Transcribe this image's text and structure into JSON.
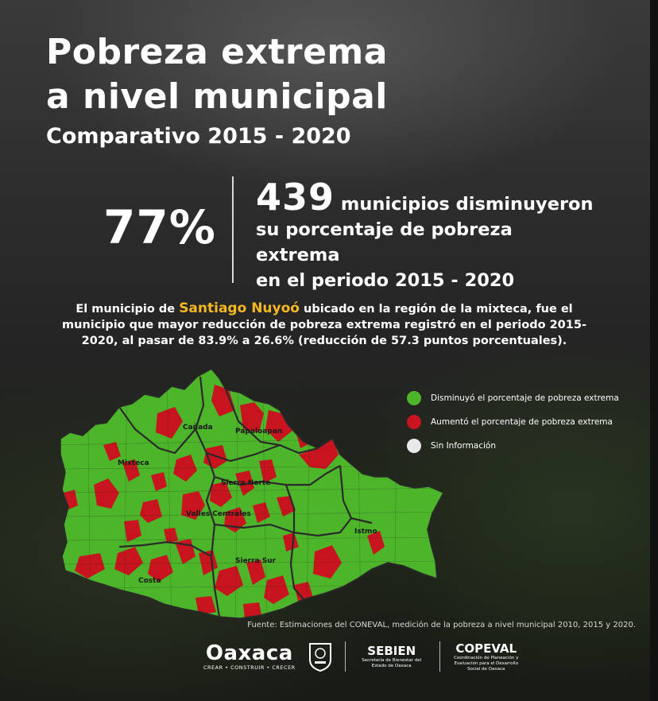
{
  "title_line1": "Pobreza extrema",
  "title_line2": "a nivel municipal",
  "subtitle": "Comparativo 2015 - 2020",
  "stat": {
    "percent": "77%",
    "count": "439",
    "text_line1": "municipios disminuyeron",
    "text_line2": "su porcentaje de pobreza extrema",
    "text_line3": "en el periodo 2015 - 2020"
  },
  "paragraph": {
    "before": "El municipio de ",
    "highlight": "Santiago Nuyoó",
    "after": " ubicado  en la región de la mixteca, fue el municipio que mayor reducción de pobreza extrema registró en el periodo 2015-2020, al pasar de 83.9% a 26.6% (reducción de 57.3 puntos porcentuales)."
  },
  "legend": [
    {
      "label": "Disminuyó el porcentaje de pobreza extrema",
      "color": "#4cb52a"
    },
    {
      "label": "Aumentó el porcentaje de pobreza extrema",
      "color": "#c8141e"
    },
    {
      "label": "Sin Información",
      "color": "#e8e8e8"
    }
  ],
  "regions": {
    "canada": "Cañada",
    "papaloapan": "Papaloapan",
    "mixteca": "Mixteca",
    "sierra_norte": "Sierra Norte",
    "valles_centrales": "Valles Centrales",
    "istmo": "Istmo",
    "sierra_sur": "Sierra Sur",
    "costa": "Costa"
  },
  "source": "Fuente: Estimaciones del CONEVAL, medición de la pobreza a nivel municipal 2010, 2015 y 2020.",
  "logos": {
    "oaxaca": "Oaxaca",
    "oaxaca_tagline": "CREAR • CONSTRUIR • CRECER",
    "sebien": "SEBIEN",
    "sebien_sub": "Secretaría de Bienestar del Estado de Oaxaca",
    "copeval": "COPEVAL",
    "copeval_sub": "Coordinación de Planeación y Evaluación para el Desarrollo Social de Oaxaca"
  },
  "colors": {
    "accent": "#f5b820",
    "green": "#4cb52a",
    "red": "#c8141e",
    "gray": "#e8e8e8"
  }
}
